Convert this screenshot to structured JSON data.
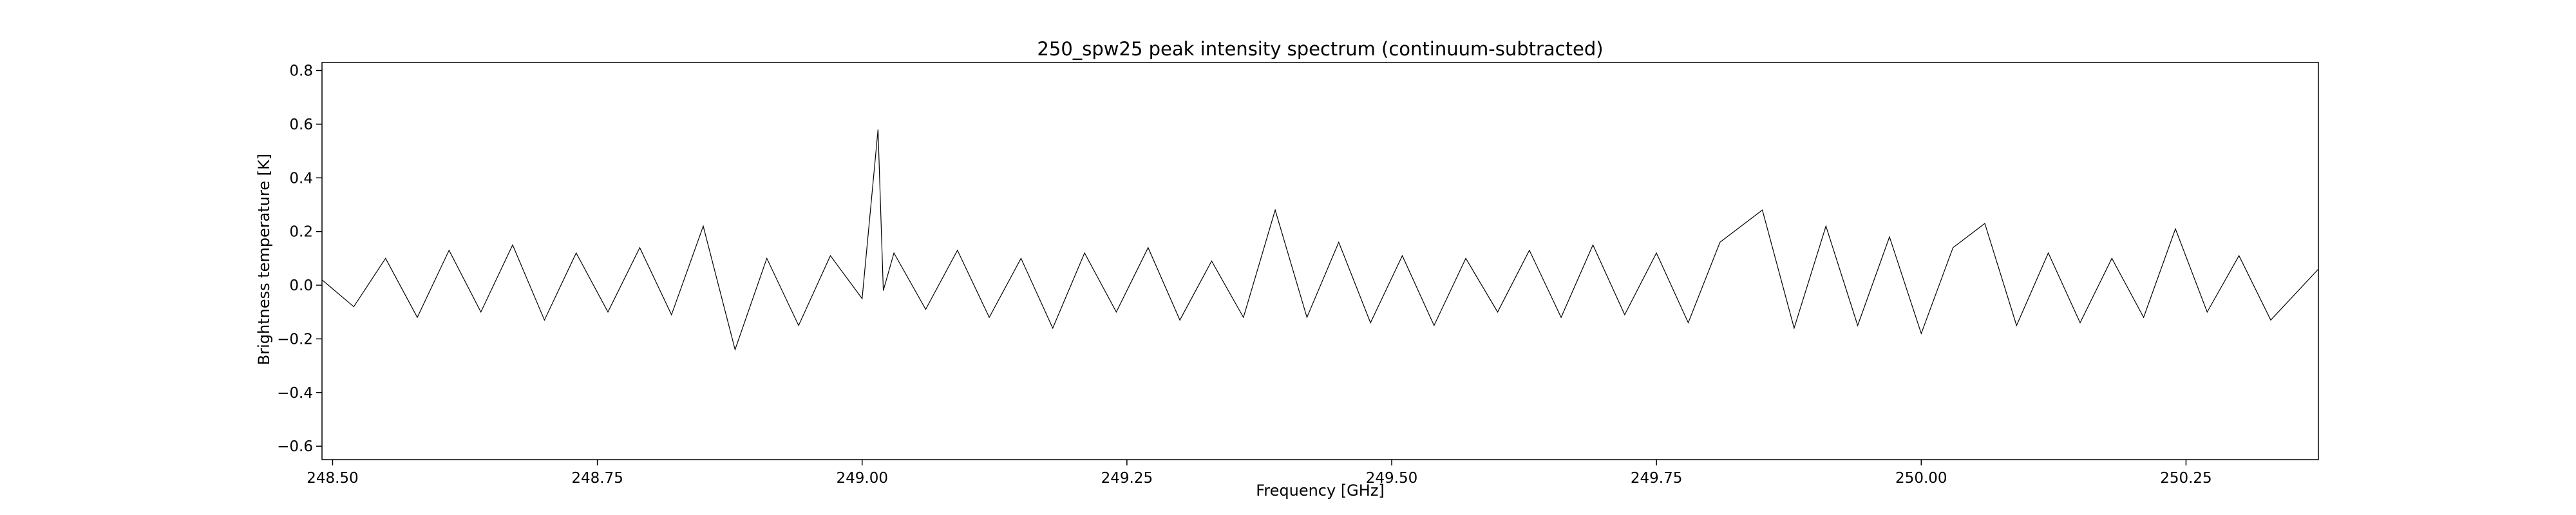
{
  "chart_data": {
    "type": "line",
    "title": "250_spw25 peak intensity spectrum (continuum-subtracted)",
    "xlabel": "Frequency [GHz]",
    "ylabel": "Brightness temperature [K]",
    "xlim": [
      248.49,
      250.375
    ],
    "ylim": [
      -0.65,
      0.83
    ],
    "xticks": [
      248.5,
      248.75,
      249.0,
      249.25,
      249.5,
      249.75,
      250.0,
      250.25
    ],
    "xtick_labels": [
      "248.50",
      "248.75",
      "249.00",
      "249.25",
      "249.50",
      "249.75",
      "250.00",
      "250.25"
    ],
    "yticks": [
      -0.6,
      -0.4,
      -0.2,
      0.0,
      0.2,
      0.4,
      0.6,
      0.8
    ],
    "ytick_labels": [
      "−0.6",
      "−0.4",
      "−0.2",
      "0.0",
      "0.2",
      "0.4",
      "0.6",
      "0.8"
    ],
    "grid": false,
    "line_color": "#000000",
    "series": [
      {
        "x": [
          248.49,
          248.52,
          248.55,
          248.58,
          248.61,
          248.64,
          248.67,
          248.7,
          248.73,
          248.76,
          248.79,
          248.82,
          248.85,
          248.88,
          248.91,
          248.94,
          248.97,
          249.0,
          249.015,
          249.02,
          249.03,
          249.06,
          249.09,
          249.12,
          249.15,
          249.18,
          249.21,
          249.24,
          249.27,
          249.3,
          249.33,
          249.36,
          249.39,
          249.42,
          249.45,
          249.48,
          249.51,
          249.54,
          249.57,
          249.6,
          249.63,
          249.66,
          249.69,
          249.72,
          249.75,
          249.78,
          249.81,
          249.85,
          249.88,
          249.91,
          249.94,
          249.97,
          250.0,
          250.03,
          250.06,
          250.09,
          250.12,
          250.15,
          250.18,
          250.21,
          250.24,
          250.27,
          250.3,
          250.33,
          250.375
        ],
        "y": [
          0.02,
          -0.08,
          0.1,
          -0.12,
          0.13,
          -0.1,
          0.15,
          -0.13,
          0.12,
          -0.1,
          0.14,
          -0.11,
          0.22,
          -0.24,
          0.1,
          -0.15,
          0.11,
          -0.05,
          0.58,
          -0.02,
          0.12,
          -0.09,
          0.13,
          -0.12,
          0.1,
          -0.16,
          0.12,
          -0.1,
          0.14,
          -0.13,
          0.09,
          -0.12,
          0.28,
          -0.12,
          0.16,
          -0.14,
          0.11,
          -0.15,
          0.1,
          -0.1,
          0.13,
          -0.12,
          0.15,
          -0.11,
          0.12,
          -0.14,
          0.16,
          0.28,
          -0.16,
          0.22,
          -0.15,
          0.18,
          -0.18,
          0.14,
          0.23,
          -0.15,
          0.12,
          -0.14,
          0.1,
          -0.12,
          0.21,
          -0.1,
          0.11,
          -0.13,
          0.06
        ]
      }
    ]
  }
}
